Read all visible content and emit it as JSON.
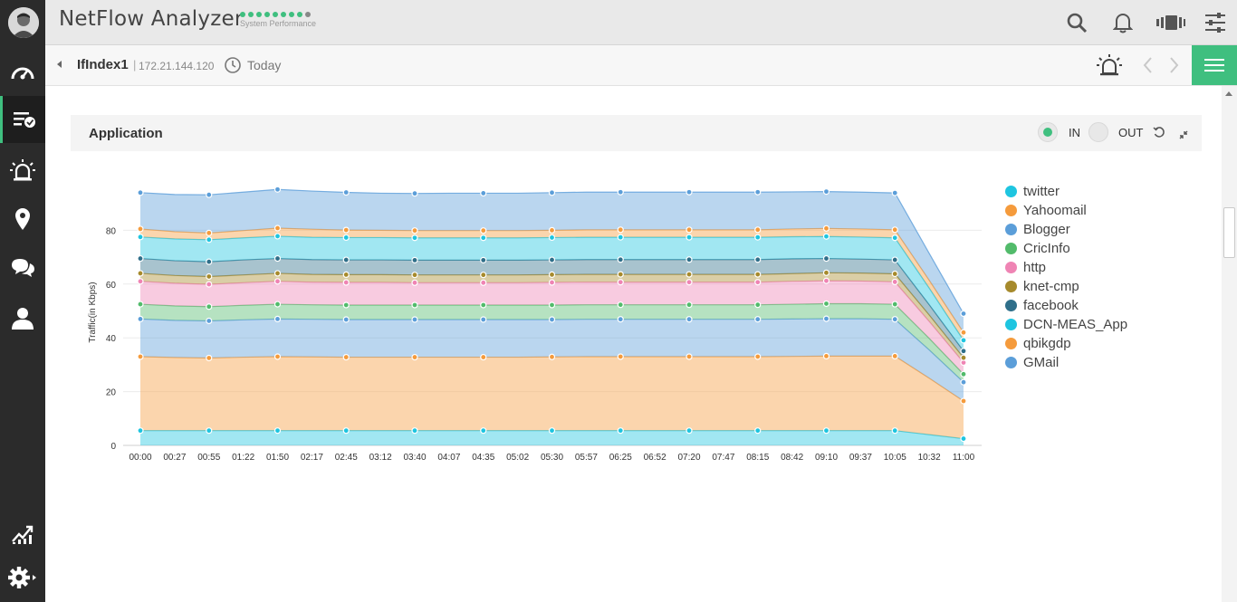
{
  "header": {
    "app_title": "NetFlow Analyzer",
    "perf_label": "System Performance",
    "perf_dots_on": 8,
    "perf_dots_total": 9
  },
  "subheader": {
    "interface": "IfIndex1",
    "separator": "|",
    "ip": "172.21.144.120",
    "time_range": "Today"
  },
  "panel": {
    "title": "Application",
    "toggle_in": "IN",
    "toggle_out": "OUT",
    "selected": "IN"
  },
  "colors": {
    "accent": "#3fbf7f",
    "sidebar": "#2b2b2b"
  },
  "chart_data": {
    "type": "area",
    "stacked": true,
    "ylabel": "Traffic(in Kbps)",
    "ylim": [
      0,
      100
    ],
    "yticks": [
      0,
      20,
      40,
      60,
      80
    ],
    "grid": true,
    "legend": "right",
    "x": [
      "00:00",
      "00:27",
      "00:55",
      "01:22",
      "01:50",
      "02:17",
      "02:45",
      "03:12",
      "03:40",
      "04:07",
      "04:35",
      "05:02",
      "05:30",
      "05:57",
      "06:25",
      "06:52",
      "07:20",
      "07:47",
      "08:15",
      "08:42",
      "09:10",
      "09:37",
      "10:05",
      "10:32",
      "11:00"
    ],
    "marker_indices": [
      0,
      2,
      4,
      6,
      8,
      10,
      12,
      14,
      16,
      18,
      20,
      22,
      24
    ],
    "series": [
      {
        "name": "twitter",
        "color": "#1ec5e0",
        "values": [
          5.5,
          5.5,
          5.5,
          5.5,
          5.5,
          5.5,
          5.5,
          5.5,
          5.5,
          5.5,
          5.5,
          5.5,
          5.5,
          5.5,
          5.5,
          5.5,
          5.5,
          5.5,
          5.5,
          5.5,
          5.5,
          5.5,
          5.5,
          4.0,
          2.5
        ]
      },
      {
        "name": "Yahoomail",
        "color": "#f59b3c",
        "values": [
          27.5,
          27.2,
          27,
          27.3,
          27.5,
          27.4,
          27.3,
          27.3,
          27.3,
          27.3,
          27.3,
          27.3,
          27.4,
          27.5,
          27.5,
          27.5,
          27.5,
          27.5,
          27.5,
          27.6,
          27.7,
          27.7,
          27.7,
          21,
          14
        ]
      },
      {
        "name": "Blogger",
        "color": "#5b9ed9",
        "values": [
          14,
          13.8,
          13.8,
          13.9,
          14,
          14,
          14,
          14,
          14,
          14,
          14,
          14,
          13.9,
          13.9,
          13.9,
          13.9,
          13.9,
          13.9,
          13.9,
          13.9,
          13.9,
          13.9,
          13.7,
          10.5,
          7
        ]
      },
      {
        "name": "CricInfo",
        "color": "#52bb6b",
        "values": [
          5.5,
          5.4,
          5.3,
          5.4,
          5.5,
          5.4,
          5.4,
          5.4,
          5.4,
          5.4,
          5.4,
          5.4,
          5.4,
          5.4,
          5.4,
          5.4,
          5.4,
          5.4,
          5.4,
          5.5,
          5.6,
          5.6,
          5.6,
          4.3,
          3
        ]
      },
      {
        "name": "http",
        "color": "#ef84b4",
        "values": [
          8.5,
          8.4,
          8.3,
          8.4,
          8.5,
          8.4,
          8.4,
          8.4,
          8.3,
          8.3,
          8.3,
          8.3,
          8.4,
          8.4,
          8.4,
          8.4,
          8.4,
          8.4,
          8.4,
          8.5,
          8.5,
          8.4,
          8.3,
          6.3,
          4.3
        ]
      },
      {
        "name": "knet-cmp",
        "color": "#a68a2c",
        "values": [
          3,
          2.9,
          2.9,
          2.9,
          3,
          2.9,
          2.9,
          2.9,
          2.9,
          2.9,
          2.9,
          2.9,
          2.9,
          2.9,
          2.9,
          2.9,
          2.9,
          2.9,
          2.9,
          2.9,
          3,
          3,
          3,
          2.4,
          1.8
        ]
      },
      {
        "name": "facebook",
        "color": "#2f6f8a",
        "values": [
          5.5,
          5.5,
          5.5,
          5.6,
          5.5,
          5.5,
          5.5,
          5.5,
          5.5,
          5.5,
          5.5,
          5.5,
          5.5,
          5.5,
          5.5,
          5.5,
          5.5,
          5.5,
          5.5,
          5.5,
          5.3,
          5.2,
          5.2,
          3.8,
          2.5
        ]
      },
      {
        "name": "DCN-MEAS_App",
        "color": "#1ec5e0",
        "values": [
          8,
          8.1,
          8.2,
          8.2,
          8.3,
          8.3,
          8.3,
          8.3,
          8.3,
          8.3,
          8.3,
          8.3,
          8.3,
          8.3,
          8.3,
          8.3,
          8.3,
          8.3,
          8.3,
          8.2,
          8.2,
          8.2,
          8.2,
          6.2,
          4
        ]
      },
      {
        "name": "qbikgdp",
        "color": "#f59b3c",
        "values": [
          3,
          2.7,
          2.5,
          2.7,
          3,
          3,
          2.8,
          2.7,
          2.7,
          2.7,
          2.7,
          2.7,
          2.7,
          2.8,
          2.8,
          2.8,
          2.8,
          2.8,
          2.8,
          2.9,
          3,
          3,
          3,
          2.9,
          2.9
        ]
      },
      {
        "name": "GMail",
        "color": "#5b9ed9",
        "values": [
          13.5,
          13.8,
          14.2,
          14.3,
          14.4,
          14.2,
          14,
          13.8,
          13.8,
          13.9,
          13.9,
          13.9,
          14,
          14,
          14,
          14,
          14,
          14,
          14,
          13.8,
          13.7,
          13.7,
          13.7,
          10,
          7
        ]
      }
    ]
  }
}
